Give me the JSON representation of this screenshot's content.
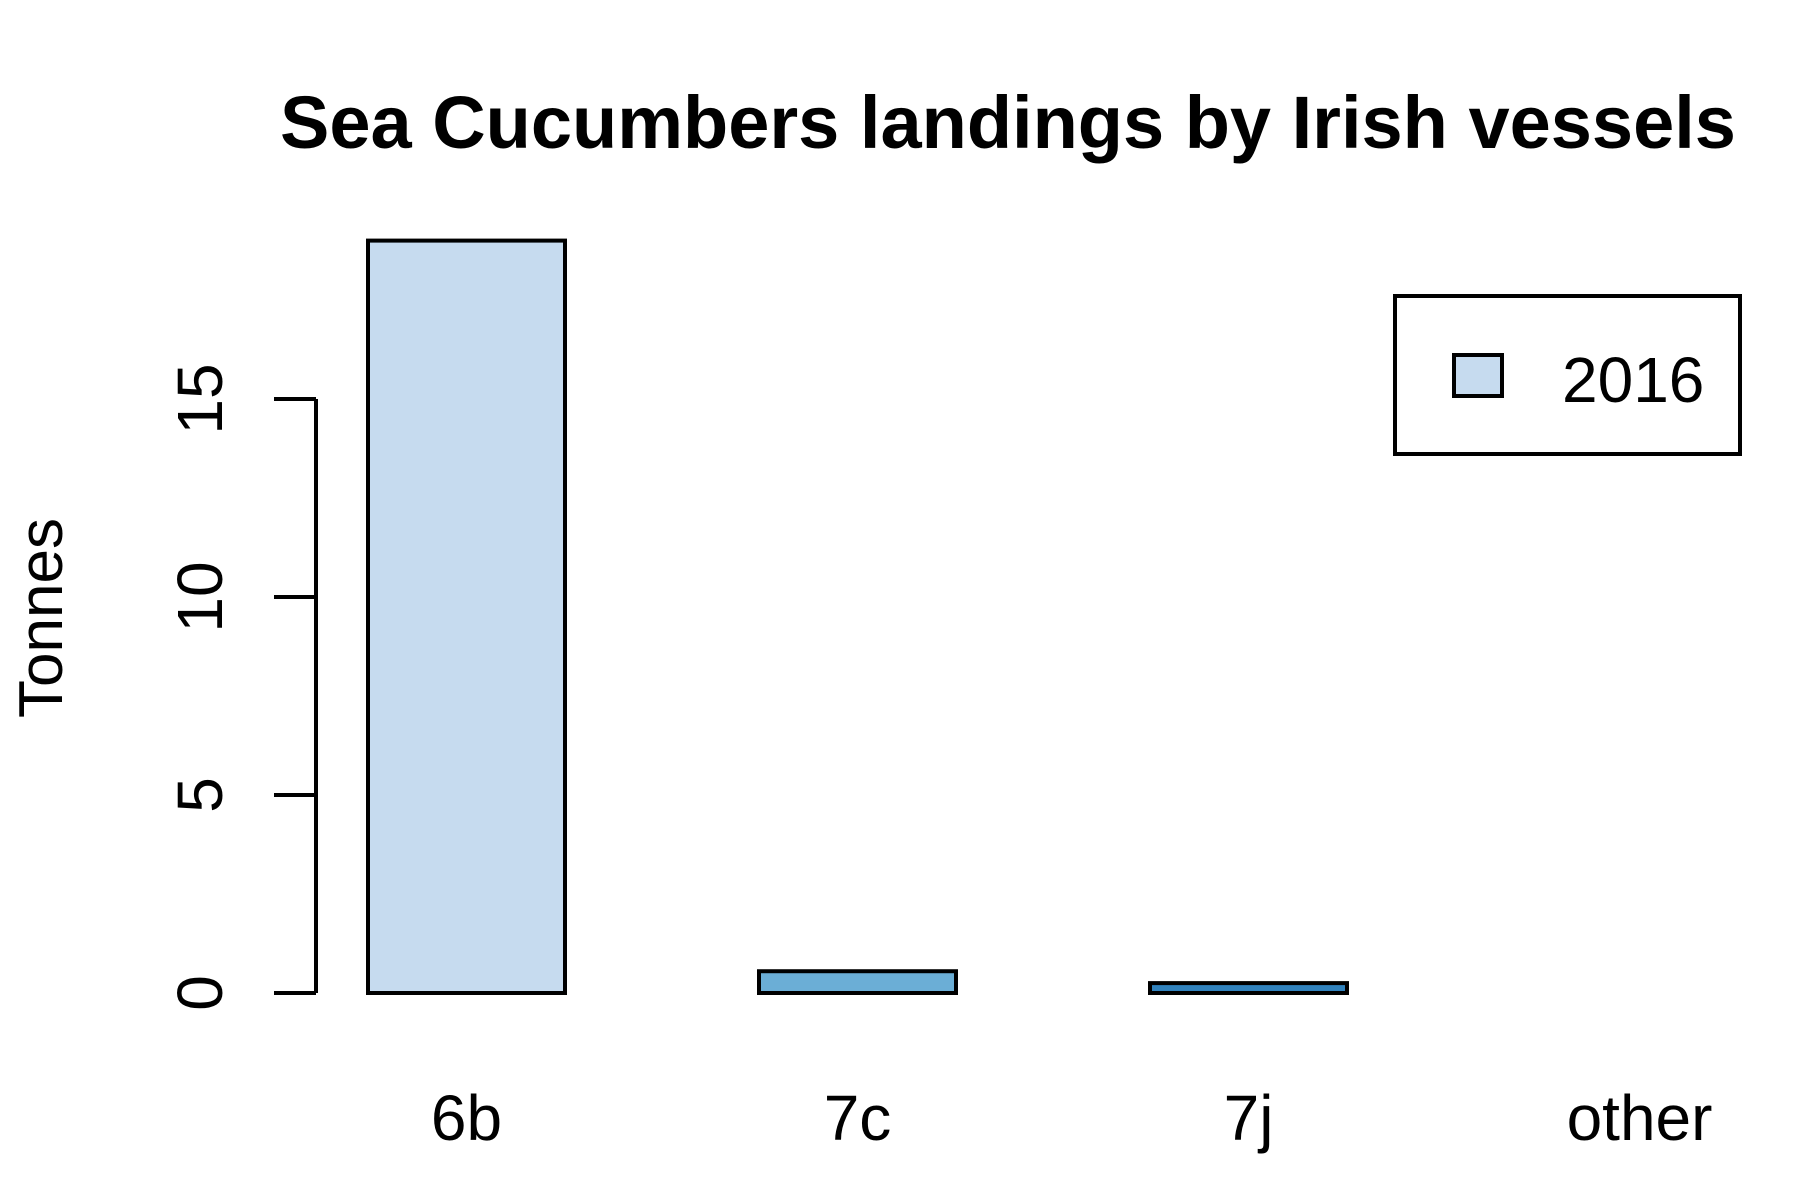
{
  "chart_data": {
    "type": "bar",
    "title": "Sea Cucumbers landings by Irish vessels",
    "xlabel": "",
    "ylabel": "Tonnes",
    "categories": [
      "6b",
      "7c",
      "7j",
      "other"
    ],
    "values": [
      19,
      0.55,
      0.25,
      0
    ],
    "bar_colors": [
      "#c6dbef",
      "#6baed6",
      "#3182bd",
      "#08519c"
    ],
    "ylim": [
      0,
      19
    ],
    "yticks": [
      0,
      5,
      10,
      15
    ],
    "legend": {
      "position": "top-right",
      "entries": [
        {
          "label": "2016",
          "color": "#c6dbef"
        }
      ]
    },
    "grid": false
  }
}
